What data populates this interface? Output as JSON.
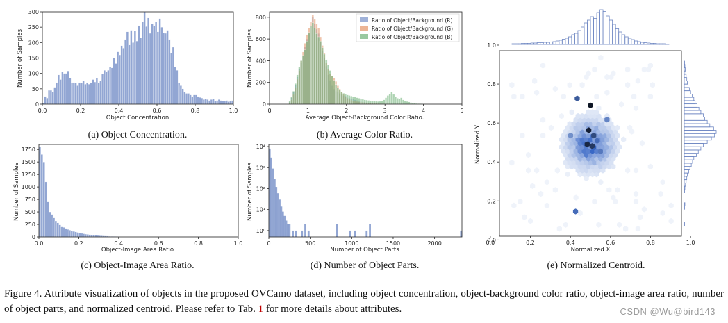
{
  "chart_data": [
    {
      "id": "a",
      "type": "bar",
      "xlabel": "Object Concentration",
      "ylabel": "Number of Samples",
      "xlim": [
        0,
        1
      ],
      "ylim": [
        0,
        300
      ],
      "xticks": [
        "0.0",
        "0.2",
        "0.4",
        "0.6",
        "0.8",
        "1.0"
      ],
      "yticks": [
        "0",
        "50",
        "100",
        "150",
        "200",
        "250",
        "300"
      ],
      "values": [
        3,
        25,
        20,
        45,
        45,
        40,
        55,
        70,
        95,
        80,
        105,
        100,
        100,
        108,
        85,
        70,
        70,
        68,
        60,
        70,
        68,
        75,
        65,
        70,
        65,
        70,
        80,
        72,
        85,
        70,
        75,
        98,
        110,
        105,
        110,
        120,
        118,
        150,
        132,
        170,
        160,
        190,
        182,
        210,
        235,
        192,
        240,
        200,
        238,
        205,
        255,
        215,
        268,
        300,
        252,
        280,
        230,
        260,
        255,
        268,
        235,
        278,
        250,
        232,
        230,
        240,
        210,
        165,
        185,
        120,
        110,
        70,
        60,
        50,
        40,
        35,
        35,
        30,
        25,
        30,
        30,
        25,
        22,
        20,
        15,
        18,
        15,
        12,
        15,
        18,
        10,
        12,
        15,
        12,
        10,
        10,
        12,
        8,
        10,
        12
      ],
      "subcaption": "(a) Object Concentration."
    },
    {
      "id": "b",
      "type": "bar",
      "xlabel": "Average Object-Background Color Ratio.",
      "ylabel": "Number of Samples",
      "xlim": [
        0,
        5
      ],
      "ylim": [
        0,
        850
      ],
      "xticks": [
        "0",
        "1",
        "2",
        "3",
        "4",
        "5"
      ],
      "yticks": [
        "0",
        "200",
        "400",
        "600",
        "800"
      ],
      "series": [
        {
          "name": "Ratio of Object/Background (R)",
          "color": "#7f97cb",
          "values": [
            0,
            0,
            0,
            0,
            0,
            0,
            0,
            0,
            0,
            0,
            20,
            60,
            110,
            180,
            250,
            320,
            380,
            450,
            530,
            600,
            650,
            720,
            800,
            740,
            690,
            650,
            570,
            490,
            430,
            350,
            270,
            220,
            170,
            140,
            120,
            110,
            100,
            90,
            80,
            75,
            60,
            55,
            50,
            45,
            40,
            35,
            30,
            25,
            20,
            18,
            15,
            12,
            10,
            10,
            8,
            8,
            6,
            5,
            5,
            4,
            4,
            3,
            3,
            3,
            2,
            2,
            2,
            2,
            2,
            1,
            1,
            1,
            1,
            1,
            1,
            0,
            0,
            0,
            0,
            0,
            0,
            0,
            0,
            0,
            0,
            0,
            0,
            0,
            0,
            0,
            0,
            0,
            0,
            0,
            0,
            0,
            0,
            0,
            0,
            0
          ]
        },
        {
          "name": "Ratio of Object/Background (G)",
          "color": "#e59c73",
          "values": [
            0,
            0,
            0,
            0,
            0,
            0,
            0,
            0,
            0,
            0,
            15,
            40,
            90,
            150,
            230,
            310,
            400,
            480,
            560,
            640,
            700,
            760,
            820,
            780,
            740,
            700,
            620,
            540,
            470,
            380,
            320,
            280,
            260,
            240,
            210,
            170,
            140,
            110,
            90,
            70,
            55,
            45,
            38,
            32,
            28,
            25,
            22,
            20,
            18,
            16,
            14,
            12,
            10,
            9,
            8,
            7,
            6,
            5,
            4,
            4,
            3,
            3,
            2,
            2,
            2,
            1,
            1,
            1,
            1,
            1,
            0,
            0,
            0,
            0,
            0,
            0,
            0,
            0,
            0,
            0,
            0,
            0,
            0,
            0,
            0,
            0,
            0,
            0,
            0,
            0,
            0,
            0,
            0,
            0,
            0,
            0,
            0,
            0,
            0,
            0
          ]
        },
        {
          "name": "Ratio of Object/Background (B)",
          "color": "#77b57f",
          "values": [
            0,
            0,
            0,
            0,
            0,
            0,
            0,
            0,
            0,
            0,
            30,
            70,
            120,
            190,
            270,
            340,
            400,
            450,
            500,
            580,
            660,
            720,
            750,
            700,
            650,
            620,
            580,
            520,
            460,
            410,
            360,
            310,
            260,
            220,
            180,
            150,
            130,
            110,
            100,
            90,
            85,
            80,
            75,
            70,
            65,
            60,
            55,
            50,
            45,
            40,
            38,
            35,
            32,
            30,
            28,
            26,
            25,
            26,
            30,
            40,
            60,
            80,
            95,
            110,
            90,
            70,
            55,
            50,
            60,
            40,
            30,
            25,
            20,
            15,
            10,
            8,
            6,
            5,
            4,
            3,
            3,
            2,
            2,
            2,
            1,
            1,
            1,
            1,
            1,
            1,
            0,
            0,
            0,
            0,
            0,
            0,
            0,
            0,
            0,
            0
          ]
        }
      ],
      "subcaption": "(b) Average Color Ratio."
    },
    {
      "id": "c",
      "type": "bar",
      "xlabel": "Object-Image Area Ratio",
      "ylabel": "Number of Samples",
      "xlim": [
        0,
        1
      ],
      "ylim": [
        0,
        1850
      ],
      "xticks": [
        "0.0",
        "0.2",
        "0.4",
        "0.6",
        "0.8",
        "1.0"
      ],
      "yticks": [
        "0",
        "250",
        "500",
        "750",
        "1000",
        "1250",
        "1500",
        "1750"
      ],
      "values": [
        1800,
        1650,
        1500,
        1100,
        700,
        500,
        450,
        380,
        320,
        280,
        240,
        200,
        190,
        170,
        150,
        135,
        120,
        110,
        100,
        90,
        80,
        70,
        62,
        55,
        50,
        45,
        40,
        35,
        30,
        28,
        25,
        22,
        20,
        18,
        15,
        12,
        10,
        9,
        8,
        7,
        6,
        5,
        4,
        4,
        3,
        3,
        2,
        2,
        2,
        2,
        1,
        1,
        1,
        1,
        1,
        1,
        1,
        1,
        1,
        1,
        0,
        0,
        0,
        0,
        0,
        0,
        0,
        0,
        0,
        0,
        0,
        0,
        0,
        0,
        0,
        0,
        0,
        0,
        0,
        0,
        0,
        0,
        0,
        0,
        0,
        0,
        0,
        0,
        0,
        0,
        0,
        0,
        0,
        0,
        0,
        0,
        0,
        0,
        0,
        0
      ],
      "subcaption": "(c) Object-Image Area Ratio."
    },
    {
      "id": "d",
      "type": "bar",
      "xlabel": "Number of Object Parts",
      "ylabel": "Number of Samples",
      "xlim": [
        0,
        2330
      ],
      "yscale": "log",
      "ylim": [
        1,
        10000
      ],
      "xticks": [
        "0",
        "500",
        "1000",
        "1500",
        "2000"
      ],
      "yticks": [
        "10⁰",
        "10¹",
        "10²",
        "10³",
        "10⁴"
      ],
      "bars": [
        [
          10,
          8000
        ],
        [
          30,
          3000
        ],
        [
          50,
          900
        ],
        [
          70,
          300
        ],
        [
          90,
          120
        ],
        [
          110,
          60
        ],
        [
          130,
          30
        ],
        [
          150,
          14
        ],
        [
          170,
          8
        ],
        [
          190,
          5
        ],
        [
          210,
          3
        ],
        [
          230,
          2
        ],
        [
          250,
          2
        ],
        [
          290,
          1
        ],
        [
          330,
          1
        ],
        [
          400,
          1
        ],
        [
          440,
          2
        ],
        [
          480,
          1
        ],
        [
          820,
          2
        ],
        [
          980,
          1
        ],
        [
          1040,
          1
        ],
        [
          1180,
          1
        ],
        [
          1220,
          2
        ],
        [
          2320,
          1
        ]
      ],
      "subcaption": "(d) Number of Object Parts."
    },
    {
      "id": "e",
      "type": "hexbin",
      "xlabel": "Normalized X",
      "ylabel": "Normalized Y",
      "xlim": [
        0,
        1
      ],
      "ylim": [
        0,
        1
      ],
      "xticks": [
        "0.0",
        "0.2",
        "0.4",
        "0.6",
        "0.8",
        "1.0"
      ],
      "yticks": [
        "0.0",
        "0.2",
        "0.4",
        "0.6",
        "0.8",
        "1.0"
      ],
      "centroid": [
        0.5,
        0.5
      ],
      "spread": 0.08,
      "highlights": [
        [
          0.5,
          0.72,
          1.0
        ],
        [
          0.49,
          0.58,
          0.95
        ],
        [
          0.48,
          0.5,
          0.9
        ],
        [
          0.51,
          0.49,
          0.8
        ],
        [
          0.42,
          0.76,
          0.6
        ],
        [
          0.41,
          0.12,
          0.5
        ],
        [
          0.52,
          0.55,
          0.7
        ],
        [
          0.54,
          0.52,
          0.5
        ],
        [
          0.56,
          0.46,
          0.45
        ],
        [
          0.6,
          0.64,
          0.4
        ],
        [
          0.38,
          0.55,
          0.35
        ]
      ],
      "marginal_x": [
        2,
        2,
        2,
        3,
        3,
        3,
        4,
        4,
        5,
        5,
        6,
        6,
        7,
        8,
        10,
        12,
        15,
        18,
        22,
        28,
        32,
        40,
        50,
        62,
        70,
        80,
        75,
        92,
        100,
        95,
        82,
        70,
        58,
        45,
        36,
        28,
        22,
        18,
        14,
        10,
        8,
        6,
        5,
        4,
        3,
        3,
        2,
        2,
        2,
        1
      ],
      "marginal_y": [
        1,
        0,
        0,
        0,
        0,
        1,
        2,
        0,
        0,
        0,
        1,
        2,
        4,
        6,
        8,
        10,
        14,
        18,
        22,
        26,
        30,
        38,
        44,
        52,
        60,
        72,
        85,
        95,
        100,
        92,
        80,
        72,
        64,
        60,
        52,
        46,
        40,
        34,
        30,
        25,
        20,
        16,
        12,
        10,
        8,
        6,
        5,
        3,
        2,
        1
      ],
      "subcaption": "(e) Normalized Centroid."
    }
  ],
  "caption": {
    "part1": "Figure 4.  Attribute visualization of objects in the proposed OVCamo dataset, including object concentration, object-background color ratio, object-image area ratio, number of object parts, and normalized centroid. Please refer to Tab. ",
    "ref": "1",
    "part2": " for more details about attributes."
  },
  "watermark": "CSDN @Wu@bird143"
}
